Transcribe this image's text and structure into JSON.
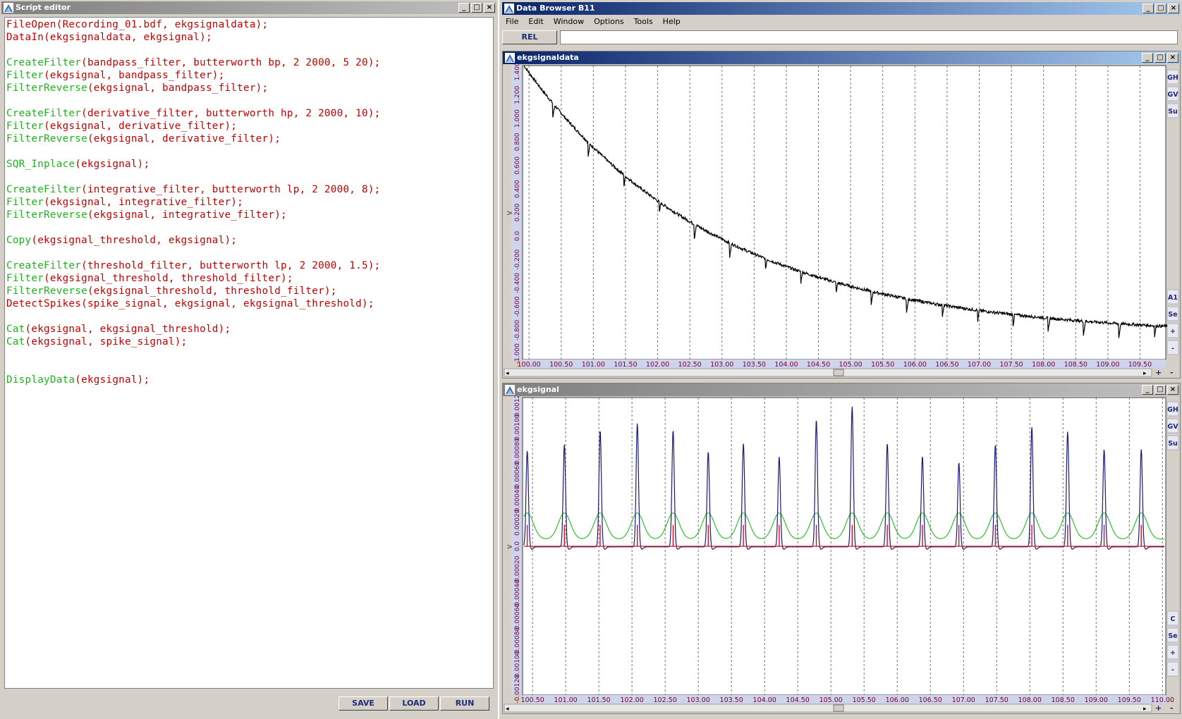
{
  "script_editor": {
    "title": "Script editor",
    "lines": [
      {
        "fn": "FileOpen",
        "args": "(Recording_01.bdf, ekgsignaldata);",
        "color": "red"
      },
      {
        "fn": "DataIn",
        "args": "(ekgsignaldata, ekgsignal);",
        "color": "red"
      },
      {
        "fn": "",
        "args": "",
        "color": "red"
      },
      {
        "fn": "CreateFilter",
        "args": "(bandpass_filter, butterworth bp, 2 2000, 5 20);",
        "color": "green"
      },
      {
        "fn": "Filter",
        "args": "(ekgsignal, bandpass_filter);",
        "color": "green"
      },
      {
        "fn": "FilterReverse",
        "args": "(ekgsignal, bandpass_filter);",
        "color": "green"
      },
      {
        "fn": "",
        "args": "",
        "color": "red"
      },
      {
        "fn": "CreateFilter",
        "args": "(derivative_filter, butterworth hp, 2 2000, 10);",
        "color": "green"
      },
      {
        "fn": "Filter",
        "args": "(ekgsignal, derivative_filter);",
        "color": "green"
      },
      {
        "fn": "FilterReverse",
        "args": "(ekgsignal, derivative_filter);",
        "color": "green"
      },
      {
        "fn": "",
        "args": "",
        "color": "red"
      },
      {
        "fn": "SQR_Inplace",
        "args": "(ekgsignal);",
        "color": "green"
      },
      {
        "fn": "",
        "args": "",
        "color": "red"
      },
      {
        "fn": "CreateFilter",
        "args": "(integrative_filter, butterworth lp, 2 2000, 8);",
        "color": "green"
      },
      {
        "fn": "Filter",
        "args": "(ekgsignal, integrative_filter);",
        "color": "green"
      },
      {
        "fn": "FilterReverse",
        "args": "(ekgsignal, integrative_filter);",
        "color": "green"
      },
      {
        "fn": "",
        "args": "",
        "color": "red"
      },
      {
        "fn": "Copy",
        "args": "(ekgsignal_threshold, ekgsignal);",
        "color": "green"
      },
      {
        "fn": "",
        "args": "",
        "color": "red"
      },
      {
        "fn": "CreateFilter",
        "args": "(threshold_filter, butterworth lp, 2 2000, 1.5);",
        "color": "green"
      },
      {
        "fn": "Filter",
        "args": "(ekgsignal_threshold, threshold_filter);",
        "color": "green"
      },
      {
        "fn": "FilterReverse",
        "args": "(ekgsignal_threshold, threshold_filter);",
        "color": "green"
      },
      {
        "fn": "DetectSpikes",
        "args": "(spike_signal, ekgsignal, ekgsignal_threshold);",
        "color": "red"
      },
      {
        "fn": "",
        "args": "",
        "color": "red"
      },
      {
        "fn": "Cat",
        "args": "(ekgsignal, ekgsignal_threshold);",
        "color": "green"
      },
      {
        "fn": "Cat",
        "args": "(ekgsignal, spike_signal);",
        "color": "green"
      },
      {
        "fn": "",
        "args": "",
        "color": "red"
      },
      {
        "fn": "",
        "args": "",
        "color": "red"
      },
      {
        "fn": "DisplayData",
        "args": "(ekgsignal);",
        "color": "green"
      }
    ],
    "buttons": {
      "save": "SAVE",
      "load": "LOAD",
      "run": "RUN"
    }
  },
  "data_browser": {
    "title": "Data Browser B11",
    "menu": [
      "File",
      "Edit",
      "Window",
      "Options",
      "Tools",
      "Help"
    ],
    "rel_button": "REL",
    "side_buttons_top": [
      "GH",
      "GV",
      "Su"
    ],
    "side_buttons_bottom_1": [
      "A1",
      "Se",
      "+",
      "-"
    ],
    "side_buttons_bottom_2": [
      "C",
      "Se",
      "+",
      "-"
    ],
    "scroll_plus": "+",
    "scroll_minus": "-"
  },
  "colors": {
    "title_active": "#0a246a",
    "title_grad": "#a6caf0",
    "axis_label": "#7a0030",
    "axis_band": "#cfd4ee",
    "series_raw": "#000000",
    "series_ekg": "#1a1a7a",
    "series_threshold": "#30c030",
    "series_spike": "#d01020"
  },
  "chart_data": [
    {
      "type": "line",
      "title": "ekgsignaldata",
      "x_ticks": [
        "100.00",
        "100.50",
        "101.00",
        "101.50",
        "102.00",
        "102.50",
        "103.00",
        "103.50",
        "104.00",
        "104.50",
        "105.00",
        "105.50",
        "106.00",
        "106.50",
        "107.00",
        "107.50",
        "108.00",
        "108.50",
        "109.00",
        "109.50"
      ],
      "y_ticks": [
        "-1.000",
        "-0.800",
        "-0.600",
        "-0.400",
        "-0.200",
        "0.0",
        "0.200",
        "0.400",
        "0.600",
        "0.800",
        "1.000",
        "1.200",
        "1.400"
      ],
      "xlim": [
        99.9,
        109.9
      ],
      "ylim": [
        -1.05,
        1.45
      ],
      "grid": true,
      "series": [
        {
          "values_decay": {
            "start": 1.45,
            "end": -0.85,
            "tau": 3.0
          },
          "spike_period": 0.55,
          "spike_depth": 0.12
        }
      ]
    },
    {
      "type": "line",
      "title": "ekgsignal",
      "x_ticks": [
        "100.50",
        "101.00",
        "101.50",
        "102.00",
        "102.50",
        "103.00",
        "103.50",
        "104.00",
        "104.50",
        "105.00",
        "105.50",
        "106.00",
        "106.50",
        "107.00",
        "107.50",
        "108.00",
        "108.50",
        "109.00",
        "109.50",
        "110.00"
      ],
      "y_ticks": [
        "-0.00120",
        "-0.00100",
        "-0.00080",
        "-0.00060",
        "-0.00040",
        "-0.00020",
        "0.0",
        "0.00020",
        "0.00040",
        "0.00060",
        "0.00080",
        "0.00100",
        "0.00120"
      ],
      "xlim": [
        100.35,
        110.05
      ],
      "ylim": [
        -0.00125,
        0.00125
      ],
      "grid": true,
      "peaks_x": [
        100.42,
        100.98,
        101.52,
        102.08,
        102.62,
        103.15,
        103.68,
        104.22,
        104.78,
        105.32,
        105.85,
        106.38,
        106.93,
        107.48,
        108.03,
        108.57,
        109.12,
        109.68
      ],
      "peaks_y": [
        0.00081,
        0.00086,
        0.00098,
        0.00104,
        0.00098,
        0.0008,
        0.00087,
        0.00076,
        0.00107,
        0.00118,
        0.00087,
        0.00076,
        0.00071,
        0.00086,
        0.00101,
        0.00097,
        0.00082,
        0.00082
      ]
    }
  ]
}
